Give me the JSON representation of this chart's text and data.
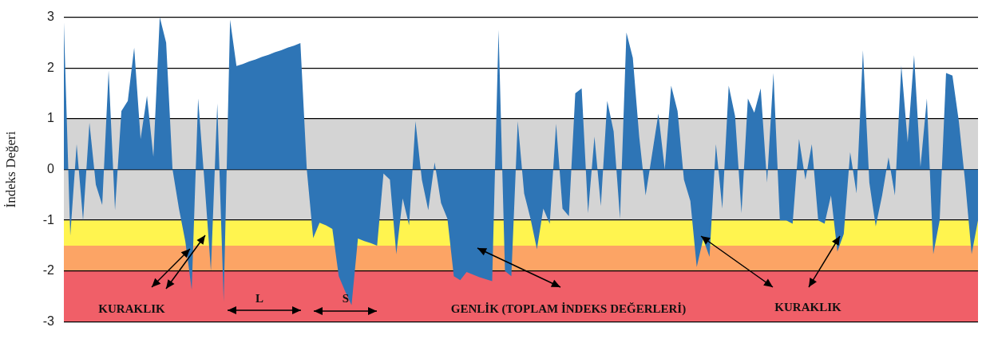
{
  "chart_data": {
    "type": "area",
    "ylabel": "İndeks Değeri",
    "categories": [
      null,
      null,
      null,
      null,
      null,
      null,
      null,
      null,
      null,
      null,
      null,
      null,
      null,
      null,
      null,
      null,
      null,
      null,
      null,
      null,
      null,
      null,
      null,
      null,
      null,
      null,
      null,
      null,
      null,
      null,
      null,
      null,
      null,
      null,
      null,
      null,
      null,
      null,
      null,
      null,
      null,
      null,
      null,
      null,
      null,
      null,
      null,
      null,
      null,
      null,
      null,
      null,
      null,
      null,
      null,
      null,
      null,
      null,
      null,
      null,
      null,
      null,
      null,
      null,
      null,
      null,
      null,
      null,
      null,
      null,
      null,
      null,
      null,
      null,
      null,
      null,
      null,
      null,
      null,
      null,
      null,
      null,
      null,
      null,
      null,
      null,
      null,
      null,
      null,
      null,
      null,
      null,
      null,
      null,
      null,
      null,
      null,
      null,
      null,
      null,
      null,
      null,
      null,
      null,
      null,
      null,
      null,
      null,
      null,
      null,
      null,
      null,
      null,
      null,
      null,
      null,
      null,
      null,
      null,
      null,
      null,
      null,
      null,
      null,
      null,
      null,
      null,
      null,
      null,
      null,
      null,
      null,
      null,
      null,
      null,
      null,
      null,
      null,
      null,
      null,
      null,
      null,
      null,
      null
    ],
    "series": [
      {
        "color": "#2e75b6",
        "values": [
          2.9,
          -1.31,
          0.5,
          -1.0,
          0.92,
          -0.3,
          -0.7,
          1.95,
          -0.8,
          1.15,
          1.35,
          2.4,
          0.6,
          1.45,
          0.25,
          3.0,
          2.5,
          0.0,
          -0.77,
          -1.42,
          -2.37,
          1.4,
          -0.25,
          -2.0,
          1.3,
          -2.6,
          2.95,
          2.04,
          2.08,
          2.13,
          2.17,
          2.22,
          2.26,
          2.31,
          2.35,
          2.4,
          2.44,
          2.49,
          0.0,
          -1.35,
          -1.05,
          -1.1,
          -1.17,
          -2.1,
          -2.4,
          -2.67,
          -1.36,
          -1.41,
          -1.45,
          -1.5,
          -0.08,
          -0.2,
          -1.67,
          -0.57,
          -1.1,
          0.95,
          -0.2,
          -0.8,
          0.14,
          -0.66,
          -0.97,
          -2.1,
          -2.18,
          -2.02,
          -2.07,
          -2.12,
          -2.16,
          -2.2,
          2.75,
          -2.0,
          -2.1,
          0.95,
          -0.47,
          -0.97,
          -1.57,
          -0.77,
          -1.07,
          0.9,
          -0.77,
          -0.92,
          1.5,
          1.6,
          -0.86,
          0.65,
          -0.72,
          1.35,
          0.75,
          -0.97,
          2.7,
          2.2,
          0.65,
          -0.51,
          0.29,
          1.1,
          0.0,
          1.65,
          1.15,
          -0.2,
          -0.62,
          -1.92,
          -1.37,
          -1.72,
          0.5,
          -0.77,
          1.65,
          1.05,
          -0.86,
          1.4,
          1.12,
          1.6,
          -0.26,
          1.9,
          -1.0,
          -1.0,
          -1.07,
          0.6,
          -0.2,
          0.5,
          -1.0,
          -1.07,
          -0.51,
          -1.62,
          -1.27,
          0.34,
          -0.47,
          2.35,
          -0.26,
          -1.12,
          -0.51,
          0.24,
          -0.51,
          2.05,
          0.54,
          2.25,
          0.05,
          1.4,
          -1.67,
          -1.0,
          1.9,
          1.85,
          0.95,
          -0.26,
          -1.67,
          -1.0
        ]
      }
    ],
    "ylim": [
      -3,
      3
    ],
    "yticks": [
      -3,
      -2,
      -1,
      0,
      1,
      2,
      3
    ],
    "grid": "y",
    "tick_labels": "y",
    "bands": [
      {
        "axis": "y",
        "from": -1,
        "to": 1,
        "color": "#d4d4d4"
      },
      {
        "axis": "y",
        "from": -1.5,
        "to": -1,
        "color": "#fff44f"
      },
      {
        "axis": "y",
        "from": -2,
        "to": -1.5,
        "color": "#fca465"
      },
      {
        "axis": "y",
        "from": -3,
        "to": -2,
        "color": "#f05f68"
      }
    ],
    "annotations": [
      "KURAKLIK",
      "L",
      "S",
      "GENLİK (TOPLAM İNDEKS DEĞERLERİ)",
      "KURAKLIK"
    ]
  }
}
